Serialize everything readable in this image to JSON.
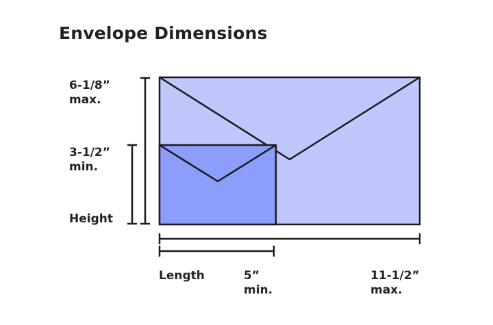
{
  "title": "Envelope Dimensions",
  "height_labels": {
    "max": {
      "value": "6-1/8”",
      "qualifier": "max."
    },
    "min": {
      "value": "3-1/2”",
      "qualifier": "min."
    },
    "axis": "Height"
  },
  "length_labels": {
    "axis": "Length",
    "min": {
      "value": "5”",
      "qualifier": "min."
    },
    "max": {
      "value": "11-1/2”",
      "qualifier": "max."
    }
  },
  "colors": {
    "large_envelope": "#c0c7fd",
    "small_envelope": "#8c9dfc",
    "outline": "#1a1a1a"
  }
}
